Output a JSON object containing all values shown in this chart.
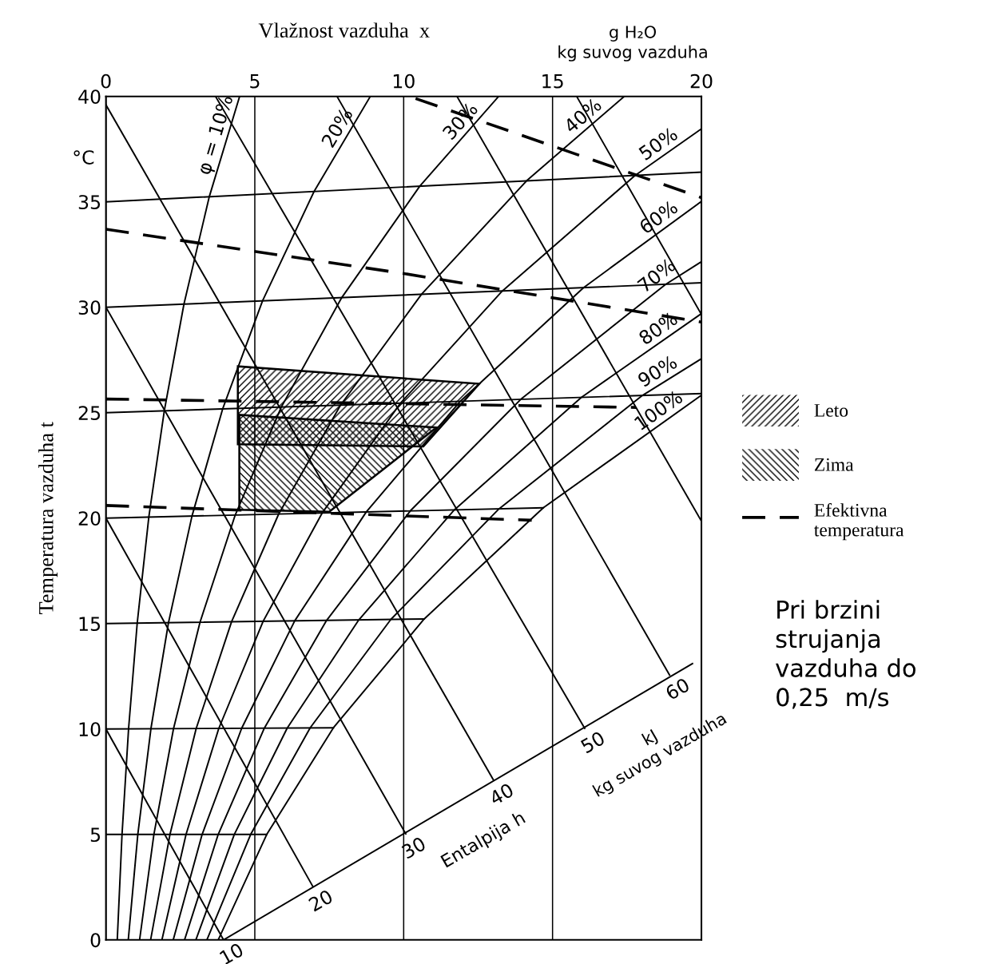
{
  "chart_data": {
    "type": "line",
    "xlabel": "Vlažnost vazduha  x",
    "ylabel": "Temperatura vazduha t",
    "xlim": [
      0,
      20
    ],
    "xticks": [
      0,
      5,
      10,
      15,
      20
    ],
    "ylim": [
      0,
      40
    ],
    "yticks": [
      0,
      5,
      10,
      15,
      20,
      25,
      30,
      35,
      40
    ],
    "grid": "x",
    "legend": "right",
    "line_style": "solid",
    "series": [
      {
        "name": "φ = 10%",
        "color": "#000000",
        "x": [
          0.38,
          0.54,
          0.76,
          1.05,
          1.44,
          1.96,
          2.62,
          3.47,
          4.49
        ],
        "values": [
          0,
          5,
          10.01,
          15.02,
          20.05,
          25.09,
          30.15,
          35.24,
          40
        ]
      },
      {
        "name": "20%",
        "color": "#000000",
        "x": [
          0.75,
          1.07,
          1.51,
          2.1,
          2.89,
          3.92,
          5.26,
          6.99,
          8.88
        ],
        "values": [
          0,
          5,
          10.01,
          15.04,
          20.1,
          25.18,
          30.31,
          35.49,
          40
        ]
      },
      {
        "name": "30%",
        "color": "#000000",
        "x": [
          1.13,
          1.61,
          2.27,
          3.16,
          4.34,
          5.89,
          7.92,
          10.54,
          13.19
        ],
        "values": [
          0,
          5,
          10.02,
          15.07,
          20.14,
          25.27,
          30.46,
          35.74,
          40
        ]
      },
      {
        "name": "40%",
        "color": "#000000",
        "x": [
          1.5,
          2.15,
          3.03,
          4.22,
          5.8,
          7.88,
          10.6,
          14.13,
          17.41
        ],
        "values": [
          0,
          5,
          10.02,
          15.09,
          20.19,
          25.36,
          30.62,
          36.0,
          40
        ]
      },
      {
        "name": "50%",
        "color": "#000000",
        "x": [
          1.88,
          2.69,
          3.79,
          5.28,
          7.26,
          9.89,
          13.31,
          17.77,
          20
        ],
        "values": [
          0,
          5,
          10.03,
          15.11,
          20.24,
          25.45,
          30.77,
          36.25,
          38.46
        ]
      },
      {
        "name": "60%",
        "color": "#000000",
        "x": [
          2.26,
          3.23,
          4.56,
          6.34,
          8.74,
          11.9,
          16.04,
          20
        ],
        "values": [
          0,
          5,
          10.04,
          15.13,
          20.29,
          25.54,
          30.93,
          35.02
        ]
      },
      {
        "name": "70%",
        "color": "#000000",
        "x": [
          2.64,
          3.77,
          5.32,
          7.41,
          10.22,
          13.93,
          18.8,
          20
        ],
        "values": [
          0,
          5,
          10.04,
          15.15,
          20.34,
          25.63,
          31.09,
          32.16
        ]
      },
      {
        "name": "80%",
        "color": "#000000",
        "x": [
          3.02,
          4.31,
          6.09,
          8.49,
          11.7,
          15.97,
          20
        ],
        "values": [
          0,
          5,
          10.05,
          15.17,
          20.39,
          25.73,
          29.7
        ]
      },
      {
        "name": "90%",
        "color": "#000000",
        "x": [
          3.39,
          4.86,
          6.86,
          9.57,
          13.2,
          18.02,
          20
        ],
        "values": [
          0,
          5,
          10.06,
          15.2,
          20.44,
          25.82,
          27.56
        ]
      },
      {
        "name": "100%",
        "color": "#000000",
        "x": [
          3.77,
          5.4,
          7.64,
          10.69,
          14.69,
          20
        ],
        "values": [
          0,
          5,
          10.06,
          15.22,
          20.49,
          25.83
        ]
      },
      {
        "color": "#000000",
        "x": [
          0,
          5.4
        ],
        "values": [
          5,
          5
        ]
      },
      {
        "color": "#000000",
        "x": [
          0,
          7.64
        ],
        "values": [
          10,
          10.06
        ]
      },
      {
        "color": "#000000",
        "x": [
          0,
          10.69
        ],
        "values": [
          15,
          15.22
        ]
      },
      {
        "color": "#000000",
        "x": [
          0,
          14.69
        ],
        "values": [
          20,
          20.49
        ]
      },
      {
        "color": "#000000",
        "x": [
          0,
          20
        ],
        "values": [
          25,
          25.91
        ]
      },
      {
        "color": "#000000",
        "x": [
          0,
          20
        ],
        "values": [
          30,
          31.16
        ]
      },
      {
        "color": "#000000",
        "x": [
          0,
          20
        ],
        "values": [
          35,
          36.41
        ]
      },
      {
        "name": "10",
        "color": "#000000",
        "x": [
          0,
          3.95
        ],
        "values": [
          10,
          0
        ]
      },
      {
        "name": "20",
        "color": "#000000",
        "x": [
          0,
          6.95
        ],
        "values": [
          20,
          2.53
        ]
      },
      {
        "name": "30",
        "color": "#000000",
        "x": [
          0,
          10.07
        ],
        "values": [
          30,
          5.03
        ]
      },
      {
        "name": "40",
        "color": "#000000",
        "x": [
          0,
          13.02
        ],
        "values": [
          39.6,
          7.57
        ]
      },
      {
        "name": "50",
        "color": "#000000",
        "x": [
          3.68,
          16.08
        ],
        "values": [
          40,
          10.03
        ]
      },
      {
        "name": "60",
        "color": "#000000",
        "x": [
          7.76,
          18.93
        ],
        "values": [
          40,
          12.56
        ]
      },
      {
        "color": "#000000",
        "x": [
          11.79,
          20
        ],
        "values": [
          40,
          19.86
        ]
      },
      {
        "color": "#000000",
        "x": [
          15.81,
          20
        ],
        "values": [
          40,
          29.66
        ]
      },
      {
        "color": "#000000",
        "x": [
          3.95,
          19.7
        ],
        "values": [
          0,
          13.1
        ]
      },
      {
        "type": "area",
        "name": "Leto",
        "color": "#000000",
        "x": [
          4.43,
          4.43,
          12.54,
          10.66
        ],
        "values": [
          23.5,
          27.2,
          26.37,
          23.4
        ]
      },
      {
        "type": "area",
        "name": "Zima",
        "color": "#000000",
        "x": [
          4.48,
          4.48,
          11.1,
          7.5
        ],
        "values": [
          20.4,
          24.9,
          24.3,
          20.3
        ]
      },
      {
        "name": "Efektivna\ntemperatura",
        "line_style": "dashed",
        "color": "#000000",
        "x": [
          10.4,
          20
        ],
        "values": [
          39.9,
          35.2
        ]
      },
      {
        "line_style": "dashed",
        "color": "#000000",
        "x": [
          0,
          10,
          20
        ],
        "values": [
          33.7,
          31.6,
          29.3
        ]
      },
      {
        "line_style": "dashed",
        "color": "#000000",
        "x": [
          0,
          17.8
        ],
        "values": [
          25.65,
          25.25
        ]
      },
      {
        "line_style": "dashed",
        "color": "#000000",
        "x": [
          0,
          14.3
        ],
        "values": [
          20.6,
          19.9
        ]
      }
    ],
    "annotations": [
      "°C",
      "g H₂O\nkg suvog vazduha",
      "Pri brzini\nstrujanja\nvazduha do\n0,25  m/s",
      "Entalpija h",
      "kJ\nkg suvog vazduha"
    ]
  }
}
